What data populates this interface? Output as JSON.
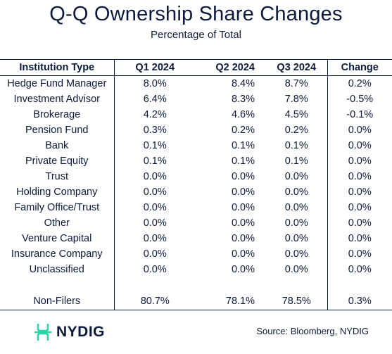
{
  "title": "Q-Q Ownership Share Changes",
  "subtitle": "Percentage of Total",
  "table": {
    "headers": [
      "Institution Type",
      "Q1 2024",
      "Q2 2024",
      "Q3 2024",
      "Change"
    ],
    "rows": [
      [
        "Hedge Fund Manager",
        "8.0%",
        "8.4%",
        "8.7%",
        "0.2%"
      ],
      [
        "Investment Advisor",
        "6.4%",
        "8.3%",
        "7.8%",
        "-0.5%"
      ],
      [
        "Brokerage",
        "4.2%",
        "4.6%",
        "4.5%",
        "-0.1%"
      ],
      [
        "Pension Fund",
        "0.3%",
        "0.2%",
        "0.2%",
        "0.0%"
      ],
      [
        "Bank",
        "0.1%",
        "0.1%",
        "0.1%",
        "0.0%"
      ],
      [
        "Private Equity",
        "0.1%",
        "0.1%",
        "0.1%",
        "0.0%"
      ],
      [
        "Trust",
        "0.0%",
        "0.0%",
        "0.0%",
        "0.0%"
      ],
      [
        "Holding Company",
        "0.0%",
        "0.0%",
        "0.0%",
        "0.0%"
      ],
      [
        "Family Office/Trust",
        "0.0%",
        "0.0%",
        "0.0%",
        "0.0%"
      ],
      [
        "Other",
        "0.0%",
        "0.0%",
        "0.0%",
        "0.0%"
      ],
      [
        "Venture Capital",
        "0.0%",
        "0.0%",
        "0.0%",
        "0.0%"
      ],
      [
        "Insurance Company",
        "0.0%",
        "0.0%",
        "0.0%",
        "0.0%"
      ],
      [
        "Unclassified",
        "0.0%",
        "0.0%",
        "0.0%",
        "0.0%"
      ]
    ],
    "total_row": [
      "Non-Filers",
      "80.7%",
      "78.1%",
      "78.5%",
      "0.3%"
    ]
  },
  "brand": {
    "name": "NYDIG",
    "icon": "nydig-logo-icon",
    "accent_color": "#2dd4a8",
    "text_color": "#0b1a3a"
  },
  "source": "Source: Bloomberg, NYDIG"
}
